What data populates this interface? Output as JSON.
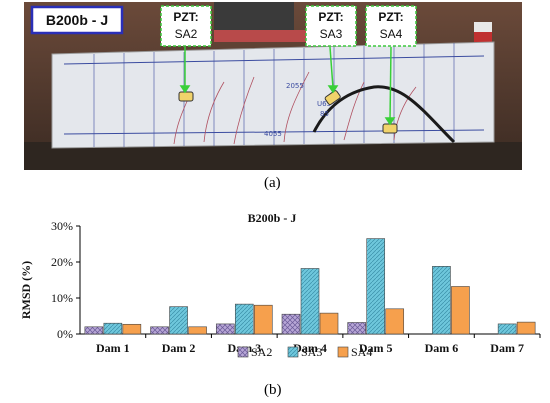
{
  "photo": {
    "specimen_label": "B200b - J",
    "pzt_tags": [
      {
        "title": "PZT:",
        "name": "SA2"
      },
      {
        "title": "PZT:",
        "name": "SA3"
      },
      {
        "title": "PZT:",
        "name": "SA4"
      }
    ],
    "beam_marks": [
      "2055",
      "4055",
      "U65",
      "85"
    ]
  },
  "captions": {
    "a": "(a)",
    "b": "(b)"
  },
  "colors": {
    "SA2": "#b7a6d6",
    "SA3": "#6ec7dc",
    "SA4": "#f6a04d",
    "label_box": "#2a2fb8",
    "tag_border": "#3cc83c"
  },
  "chart_data": {
    "type": "bar",
    "title": "B200b - J",
    "ylabel": "RMSD (%)",
    "xlabel": "",
    "categories": [
      "Dam 1",
      "Dam 2",
      "Dam 3",
      "Dam 4",
      "Dam 5",
      "Dam 6",
      "Dam 7"
    ],
    "series": [
      {
        "name": "SA2",
        "values": [
          2.0,
          2.0,
          2.8,
          5.5,
          3.2,
          null,
          null
        ]
      },
      {
        "name": "SA3",
        "values": [
          3.0,
          7.6,
          8.3,
          18.2,
          26.5,
          18.8,
          2.8
        ]
      },
      {
        "name": "SA4",
        "values": [
          2.7,
          2.0,
          8.0,
          5.8,
          7.0,
          13.2,
          3.3
        ]
      }
    ],
    "ylim": [
      0,
      30
    ],
    "yticks": [
      "0%",
      "10%",
      "20%",
      "30%"
    ],
    "ytick_values": [
      0,
      10,
      20,
      30
    ],
    "legend_position": "bottom",
    "grid": false
  }
}
